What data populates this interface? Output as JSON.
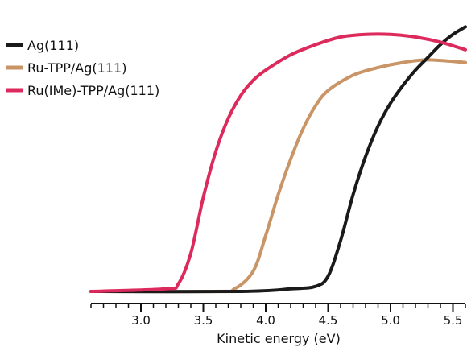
{
  "chart_data": {
    "type": "line",
    "xlabel": "Kinetic energy (eV)",
    "ylabel": "",
    "xlim": [
      2.6,
      5.6
    ],
    "ylim": [
      0,
      1
    ],
    "x_ticks": [
      3.0,
      3.5,
      4.0,
      4.5,
      5.0,
      5.5
    ],
    "x_tick_labels": [
      "3.0",
      "3.5",
      "4.0",
      "4.5",
      "5.0",
      "5.5"
    ],
    "minor_tick_step": 0.1,
    "grid": false,
    "legend_position": "top-left",
    "series": [
      {
        "name": "Ag(111)",
        "color": "#1a1a1a",
        "x": [
          2.6,
          3.8,
          4.2,
          4.4,
          4.5,
          4.6,
          4.7,
          4.8,
          4.9,
          5.0,
          5.1,
          5.2,
          5.3,
          5.4,
          5.5,
          5.6
        ],
        "y": [
          0.0,
          0.0,
          0.01,
          0.02,
          0.06,
          0.2,
          0.38,
          0.53,
          0.65,
          0.74,
          0.81,
          0.87,
          0.92,
          0.97,
          1.01,
          1.04
        ]
      },
      {
        "name": "Ru-TPP/Ag(111)",
        "color": "#c99466",
        "x": [
          2.6,
          3.6,
          3.75,
          3.9,
          4.0,
          4.1,
          4.2,
          4.3,
          4.4,
          4.5,
          4.7,
          4.9,
          5.1,
          5.3,
          5.6
        ],
        "y": [
          0.0,
          0.0,
          0.01,
          0.08,
          0.22,
          0.38,
          0.52,
          0.64,
          0.73,
          0.79,
          0.85,
          0.88,
          0.9,
          0.91,
          0.9
        ]
      },
      {
        "name": "Ru(IMe)-TPP/Ag(111)",
        "color": "#dd2a5c",
        "x": [
          2.6,
          3.2,
          3.3,
          3.4,
          3.5,
          3.6,
          3.7,
          3.8,
          3.9,
          4.0,
          4.2,
          4.4,
          4.6,
          4.8,
          5.0,
          5.2,
          5.4,
          5.6
        ],
        "y": [
          0.0,
          0.01,
          0.03,
          0.15,
          0.37,
          0.55,
          0.68,
          0.77,
          0.83,
          0.87,
          0.93,
          0.97,
          1.0,
          1.01,
          1.01,
          1.0,
          0.98,
          0.95
        ]
      }
    ]
  }
}
